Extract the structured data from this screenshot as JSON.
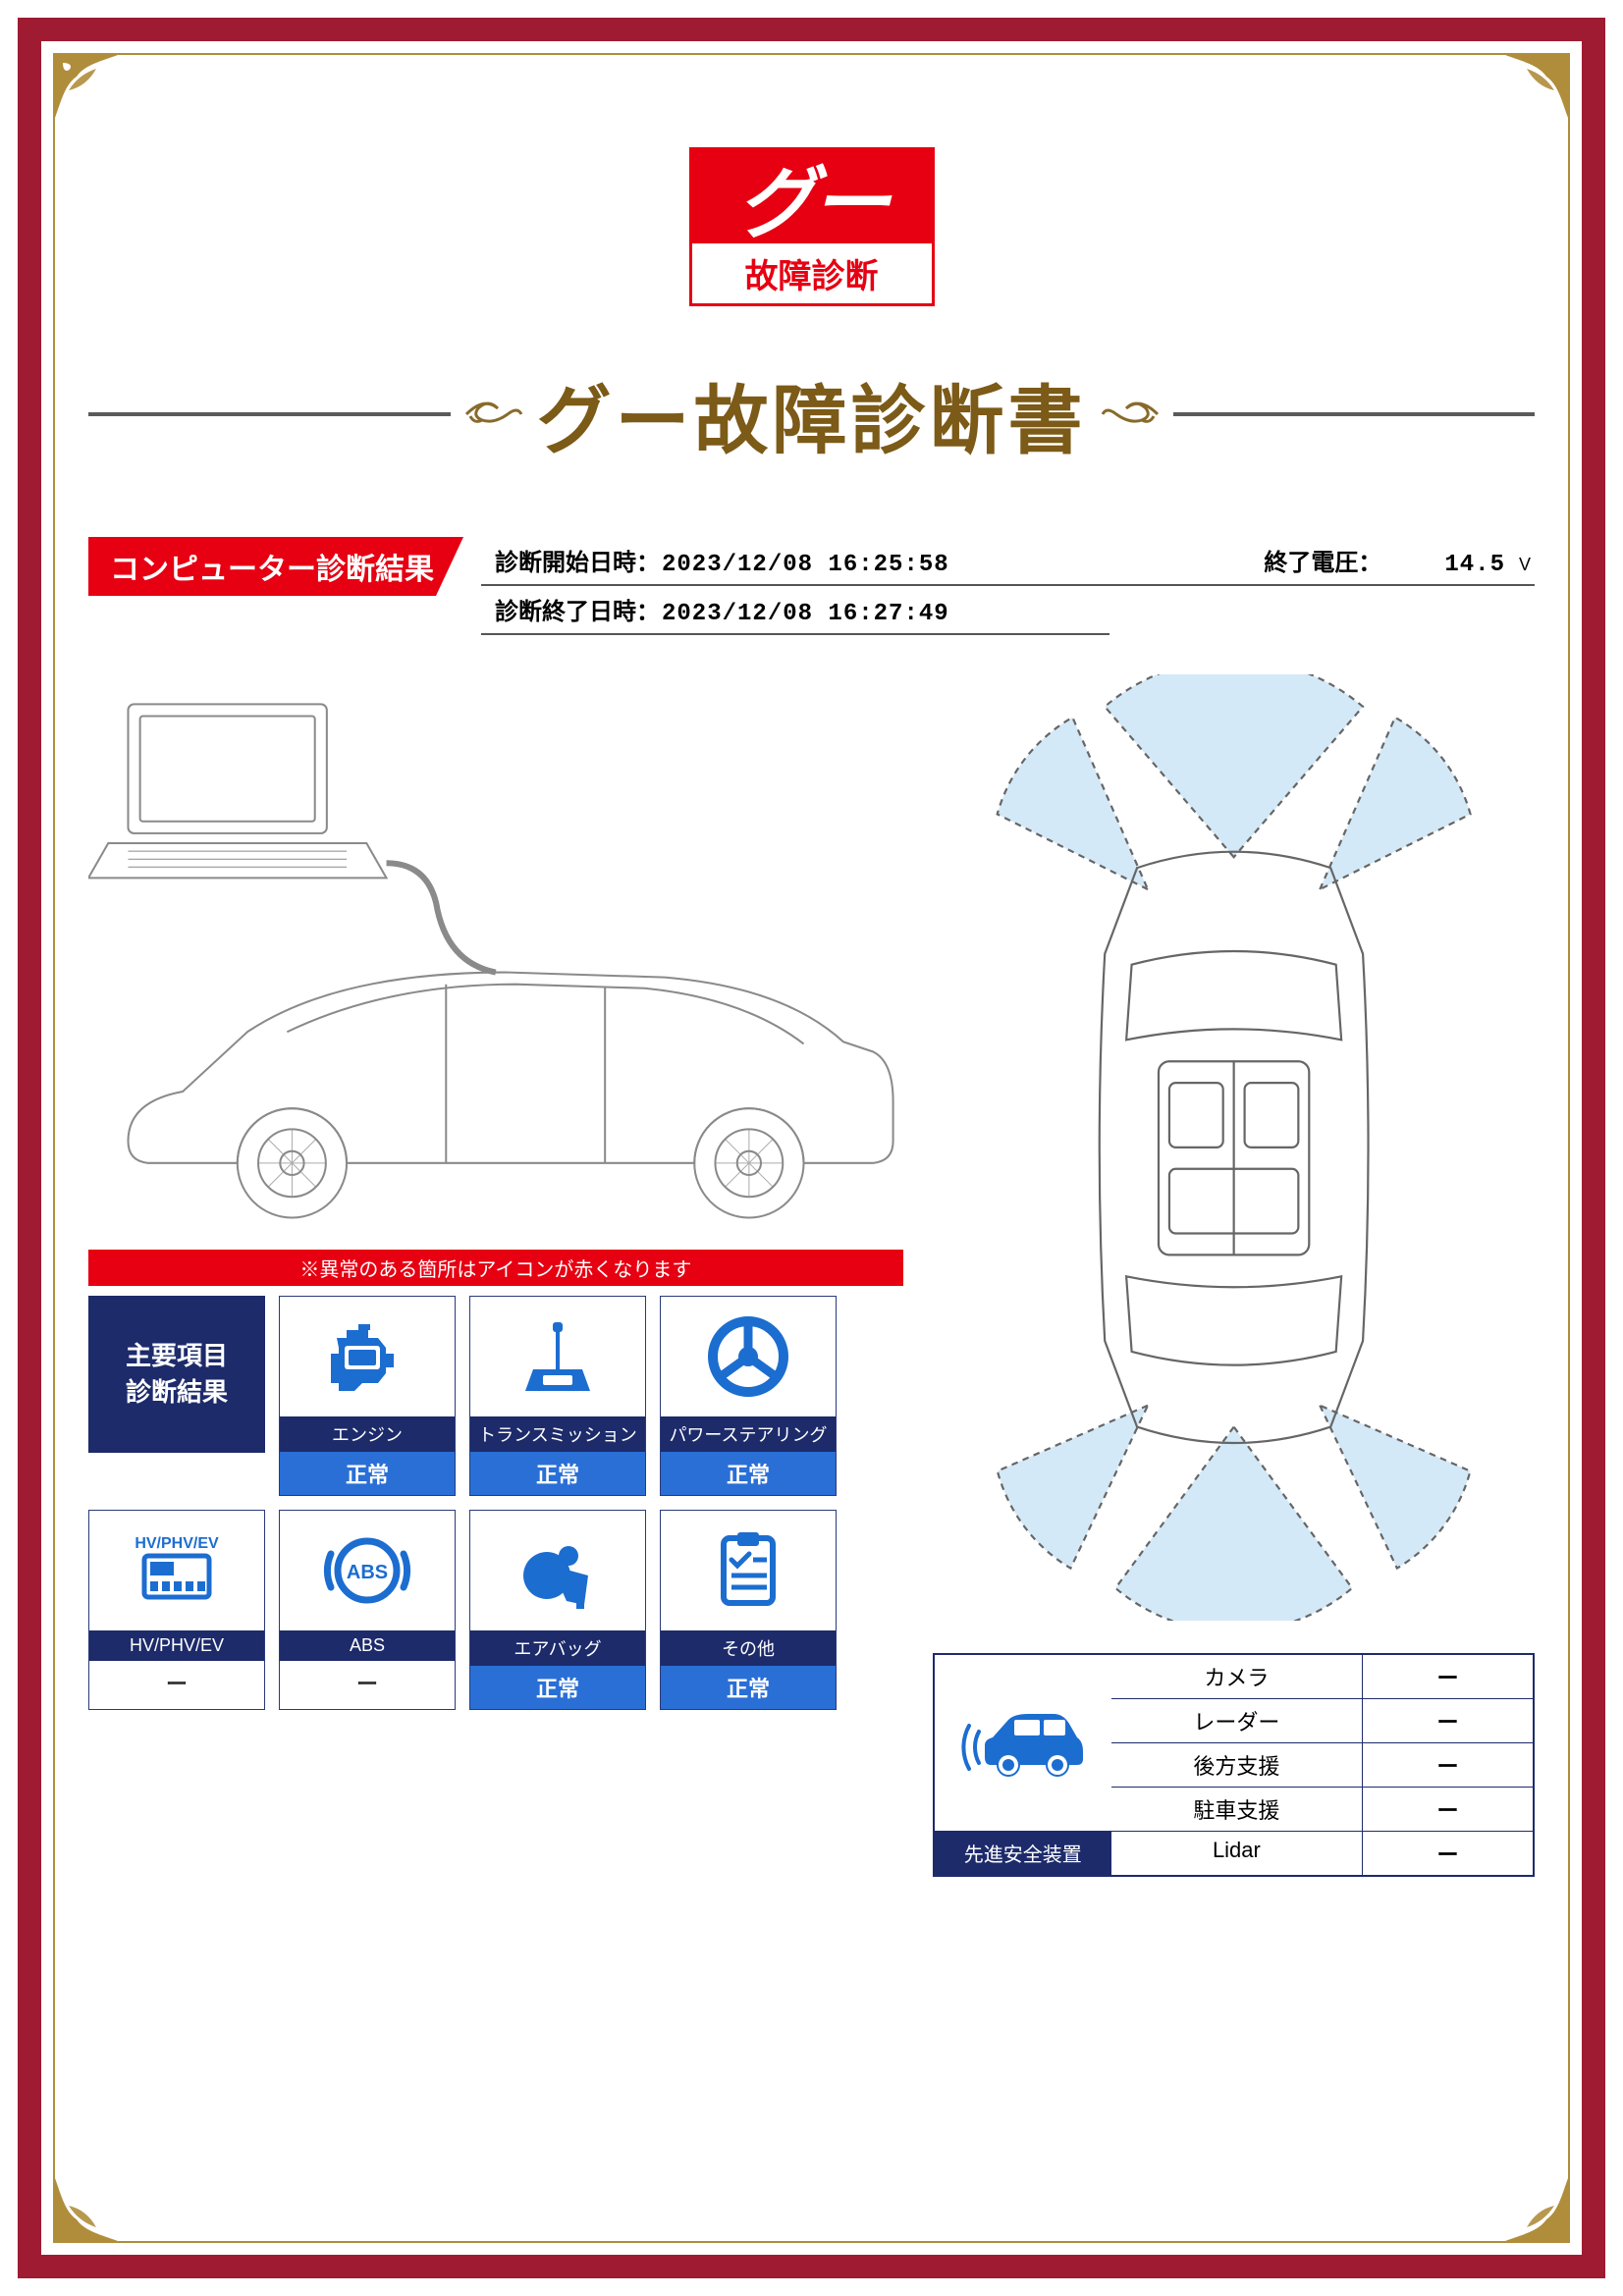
{
  "colors": {
    "frame_red": "#9e1b32",
    "gold": "#b08d3b",
    "brand_red": "#e60012",
    "title_brown": "#7c5a17",
    "navy": "#1d2b6b",
    "blue": "#2a6fd6",
    "icon_blue": "#1c6dd0",
    "line_gray": "#8a8a8a",
    "sensor_fill": "#d4e9f7"
  },
  "logo": {
    "script": "グー",
    "subtitle": "故障診断"
  },
  "title": "グー故障診断書",
  "section_label": "コンピューター診断結果",
  "meta": {
    "start_label": "診断開始日時：",
    "start_value": "2023/12/08 16:25:58",
    "volt_label": "終了電圧：",
    "volt_value": "14.5",
    "volt_unit": "V",
    "end_label": "診断終了日時：",
    "end_value": "2023/12/08 16:27:49"
  },
  "note": "※異常のある箇所はアイコンが赤くなります",
  "header_card": {
    "line1": "主要項目",
    "line2": "診断結果"
  },
  "cards": [
    {
      "id": "engine",
      "label": "エンジン",
      "status": "正常",
      "status_kind": "ok"
    },
    {
      "id": "trans",
      "label": "トランスミッション",
      "status": "正常",
      "status_kind": "ok"
    },
    {
      "id": "steer",
      "label": "パワーステアリング",
      "status": "正常",
      "status_kind": "ok"
    },
    {
      "id": "hvev",
      "label": "HV/PHV/EV",
      "status": "ー",
      "status_kind": "na"
    },
    {
      "id": "abs",
      "label": "ABS",
      "status": "ー",
      "status_kind": "na"
    },
    {
      "id": "airbag",
      "label": "エアバッグ",
      "status": "正常",
      "status_kind": "ok"
    },
    {
      "id": "other",
      "label": "その他",
      "status": "正常",
      "status_kind": "ok"
    }
  ],
  "safety": {
    "title": "先進安全装置",
    "rows": [
      {
        "name": "カメラ",
        "value": "ー"
      },
      {
        "name": "レーダー",
        "value": "ー"
      },
      {
        "name": "後方支援",
        "value": "ー"
      },
      {
        "name": "駐車支援",
        "value": "ー"
      },
      {
        "name": "Lidar",
        "value": "ー"
      }
    ]
  }
}
